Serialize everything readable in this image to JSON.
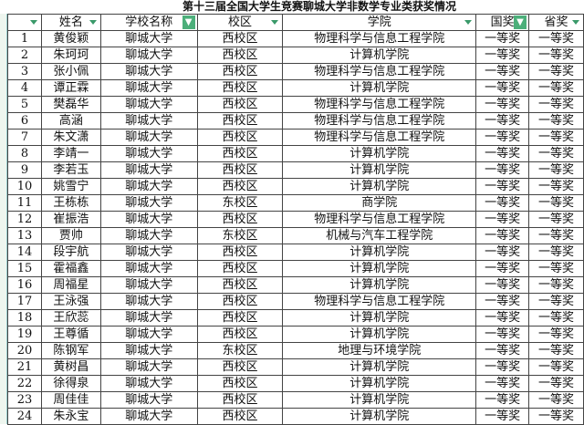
{
  "title": "第十三届全国大学生竞赛聊城大学非数学专业类获奖情况",
  "headers": [
    "",
    "姓名",
    "学校名称",
    "校区",
    "学院",
    "国奖",
    "省奖"
  ],
  "colors": {
    "filter_active": "#4caf7a",
    "dropdown": "#3a9a6a"
  },
  "rows": [
    [
      "1",
      "黄俊颖",
      "聊城大学",
      "西校区",
      "物理科学与信息工程学院",
      "一等奖",
      "一等奖"
    ],
    [
      "2",
      "朱珂珂",
      "聊城大学",
      "西校区",
      "计算机学院",
      "一等奖",
      "一等奖"
    ],
    [
      "3",
      "张小佩",
      "聊城大学",
      "西校区",
      "物理科学与信息工程学院",
      "一等奖",
      "一等奖"
    ],
    [
      "4",
      "谭正霖",
      "聊城大学",
      "西校区",
      "计算机学院",
      "一等奖",
      "一等奖"
    ],
    [
      "5",
      "樊磊华",
      "聊城大学",
      "西校区",
      "物理科学与信息工程学院",
      "一等奖",
      "一等奖"
    ],
    [
      "6",
      "高涵",
      "聊城大学",
      "西校区",
      "物理科学与信息工程学院",
      "一等奖",
      "一等奖"
    ],
    [
      "7",
      "朱文潇",
      "聊城大学",
      "西校区",
      "物理科学与信息工程学院",
      "一等奖",
      "一等奖"
    ],
    [
      "8",
      "李靖一",
      "聊城大学",
      "西校区",
      "计算机学院",
      "一等奖",
      "一等奖"
    ],
    [
      "9",
      "李若玉",
      "聊城大学",
      "西校区",
      "计算机学院",
      "一等奖",
      "一等奖"
    ],
    [
      "10",
      "姚雪宁",
      "聊城大学",
      "西校区",
      "计算机学院",
      "一等奖",
      "一等奖"
    ],
    [
      "11",
      "王栋栋",
      "聊城大学",
      "东校区",
      "商学院",
      "一等奖",
      "一等奖"
    ],
    [
      "12",
      "崔振浩",
      "聊城大学",
      "西校区",
      "物理科学与信息工程学院",
      "一等奖",
      "一等奖"
    ],
    [
      "13",
      "贾帅",
      "聊城大学",
      "东校区",
      "机械与汽车工程学院",
      "一等奖",
      "一等奖"
    ],
    [
      "14",
      "段宇航",
      "聊城大学",
      "西校区",
      "计算机学院",
      "一等奖",
      "一等奖"
    ],
    [
      "15",
      "霍福鑫",
      "聊城大学",
      "西校区",
      "计算机学院",
      "一等奖",
      "一等奖"
    ],
    [
      "16",
      "周福星",
      "聊城大学",
      "西校区",
      "计算机学院",
      "一等奖",
      "一等奖"
    ],
    [
      "17",
      "王泳强",
      "聊城大学",
      "西校区",
      "物理科学与信息工程学院",
      "一等奖",
      "一等奖"
    ],
    [
      "18",
      "王欣蕊",
      "聊城大学",
      "西校区",
      "计算机学院",
      "一等奖",
      "一等奖"
    ],
    [
      "19",
      "王尊循",
      "聊城大学",
      "西校区",
      "计算机学院",
      "一等奖",
      "一等奖"
    ],
    [
      "20",
      "陈钢军",
      "聊城大学",
      "东校区",
      "地理与环境学院",
      "一等奖",
      "一等奖"
    ],
    [
      "21",
      "黄树昌",
      "聊城大学",
      "西校区",
      "计算机学院",
      "一等奖",
      "一等奖"
    ],
    [
      "22",
      "徐得泉",
      "聊城大学",
      "西校区",
      "计算机学院",
      "一等奖",
      "一等奖"
    ],
    [
      "23",
      "周佳佳",
      "聊城大学",
      "西校区",
      "计算机学院",
      "一等奖",
      "一等奖"
    ],
    [
      "24",
      "朱永宝",
      "聊城大学",
      "西校区",
      "计算机学院",
      "一等奖",
      "一等奖"
    ]
  ]
}
